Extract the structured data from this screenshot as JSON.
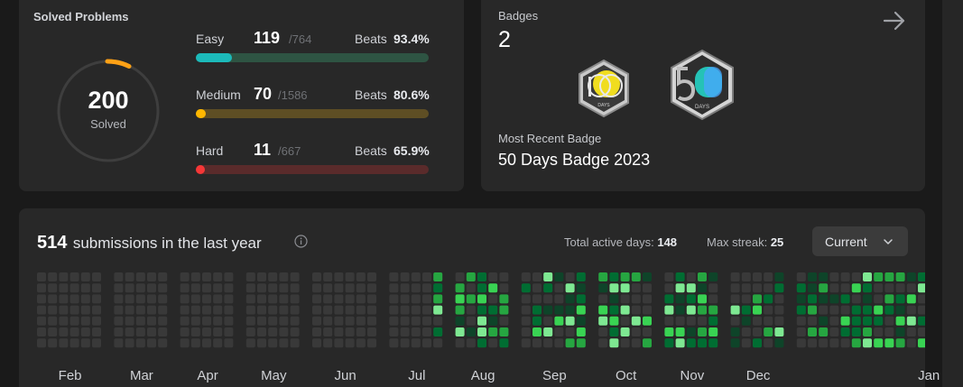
{
  "solved": {
    "title": "Solved Problems",
    "total": "200",
    "subtitle": "Solved",
    "ring_accent": "#ffa116",
    "difficulties": [
      {
        "label": "Easy",
        "count": "119",
        "total": "/764",
        "beats_label": "Beats",
        "beats": "93.4%",
        "fraction": 0.156,
        "track": "#2e5443",
        "fill": "#1cbaba"
      },
      {
        "label": "Medium",
        "count": "70",
        "total": "/1586",
        "beats_label": "Beats",
        "beats": "80.6%",
        "fraction": 0.044,
        "track": "#5e4e24",
        "fill": "#ffb700"
      },
      {
        "label": "Hard",
        "count": "11",
        "total": "/667",
        "beats_label": "Beats",
        "beats": "65.9%",
        "fraction": 0.016,
        "track": "#5a2b2b",
        "fill": "#f63737"
      }
    ]
  },
  "badges": {
    "title": "Badges",
    "count": "2",
    "items": [
      {
        "name": "100-days-badge",
        "text": "DAYS"
      },
      {
        "name": "50-days-badge",
        "text": "DAYS"
      }
    ],
    "recent_label": "Most Recent Badge",
    "recent_name": "50 Days Badge 2023"
  },
  "submissions": {
    "count": "514",
    "text": "submissions in the last year",
    "active_days_label": "Total active days:",
    "active_days": "148",
    "max_streak_label": "Max streak:",
    "max_streak": "25",
    "selector": "Current",
    "months": [
      "Feb",
      "Mar",
      "Apr",
      "May",
      "Jun",
      "Jul",
      "Aug",
      "Sep",
      "Oct",
      "Nov",
      "Dec",
      "Jan"
    ],
    "level_colors": [
      "#393939",
      "#0e4429",
      "#006d32",
      "#26a641",
      "#39d353",
      "#7ee892"
    ]
  }
}
